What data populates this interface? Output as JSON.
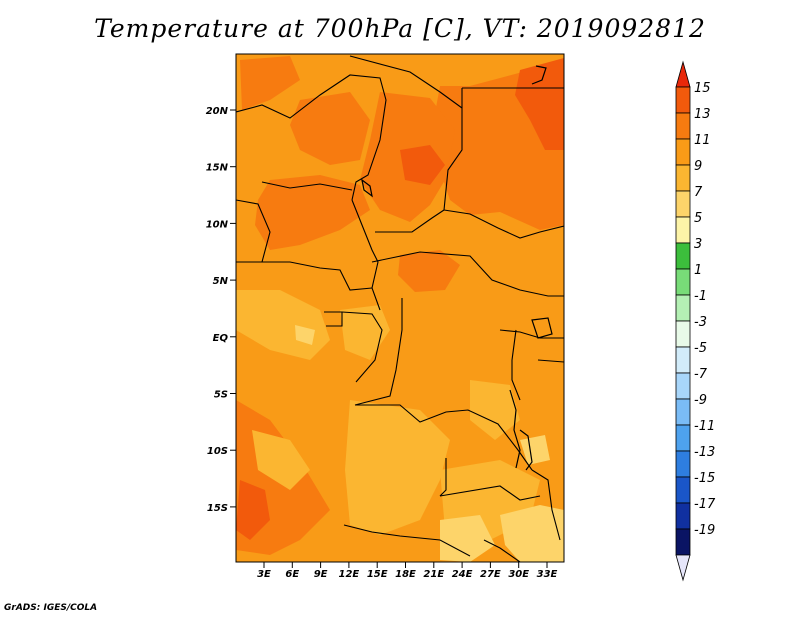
{
  "title": "Temperature at 700hPa [C], VT: 2019092812",
  "credit": "GrADS: IGES/COLA",
  "map": {
    "lat_labels": [
      "20N",
      "15N",
      "10N",
      "5N",
      "EQ",
      "5S",
      "10S",
      "15S"
    ],
    "lon_labels": [
      "3E",
      "6E",
      "9E",
      "12E",
      "15E",
      "18E",
      "21E",
      "24E",
      "27E",
      "30E",
      "33E"
    ],
    "background_color": "#f99b17"
  },
  "colorbar": {
    "labels": [
      "15",
      "13",
      "11",
      "9",
      "7",
      "5",
      "3",
      "1",
      "-1",
      "-3",
      "-5",
      "-7",
      "-9",
      "-11",
      "-13",
      "-15",
      "-17",
      "-19"
    ],
    "colors": [
      "#e8280a",
      "#f25a0c",
      "#f77b10",
      "#f99b17",
      "#fbb631",
      "#fdd46a",
      "#fdf4a8",
      "#3cbe3c",
      "#78dc78",
      "#b4f0b4",
      "#e8fae8",
      "#d2ecfa",
      "#a8d6fa",
      "#7abcf6",
      "#4ea2ee",
      "#2e7ee0",
      "#1a56c8",
      "#1030a0",
      "#0a1464",
      "#e6e6fa"
    ]
  }
}
